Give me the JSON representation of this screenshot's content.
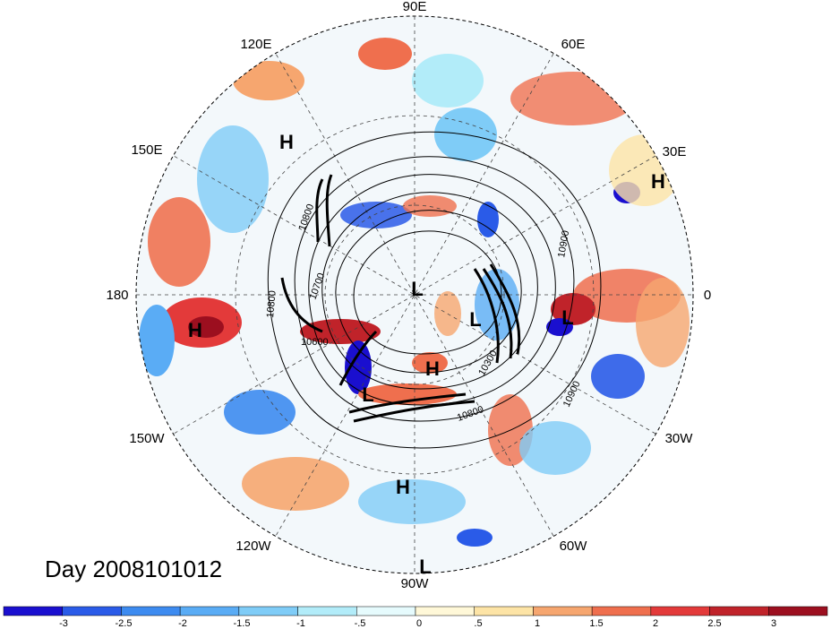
{
  "map": {
    "longitude_labels": [
      "90E",
      "60E",
      "30E",
      "0",
      "30W",
      "60W",
      "90W",
      "120W",
      "150W",
      "180",
      "150E",
      "120E"
    ],
    "highs_lows": [
      "H",
      "H",
      "H",
      "H",
      "H",
      "L",
      "L",
      "L",
      "L",
      "L",
      "L"
    ],
    "contour_labels": [
      "10800",
      "10700",
      "10800",
      "10600",
      "10900",
      "10300",
      "10800",
      "10900",
      "10800"
    ]
  },
  "title": "Day 2008101012",
  "colorbar": {
    "ticks": [
      "-3",
      "-2.5",
      "-2",
      "-1.5",
      "-1",
      "-.5",
      "0",
      ".5",
      "1",
      "1.5",
      "2",
      "2.5",
      "3"
    ],
    "colors": [
      "#1a0fcf",
      "#2a5be8",
      "#3d8bf0",
      "#5aacf5",
      "#7fccf7",
      "#b2ecf9",
      "#e6fbfd",
      "#fff8d8",
      "#fde4a6",
      "#f6a66f",
      "#ef6f4e",
      "#e33a3a",
      "#c0232a",
      "#9c0f1f"
    ]
  }
}
